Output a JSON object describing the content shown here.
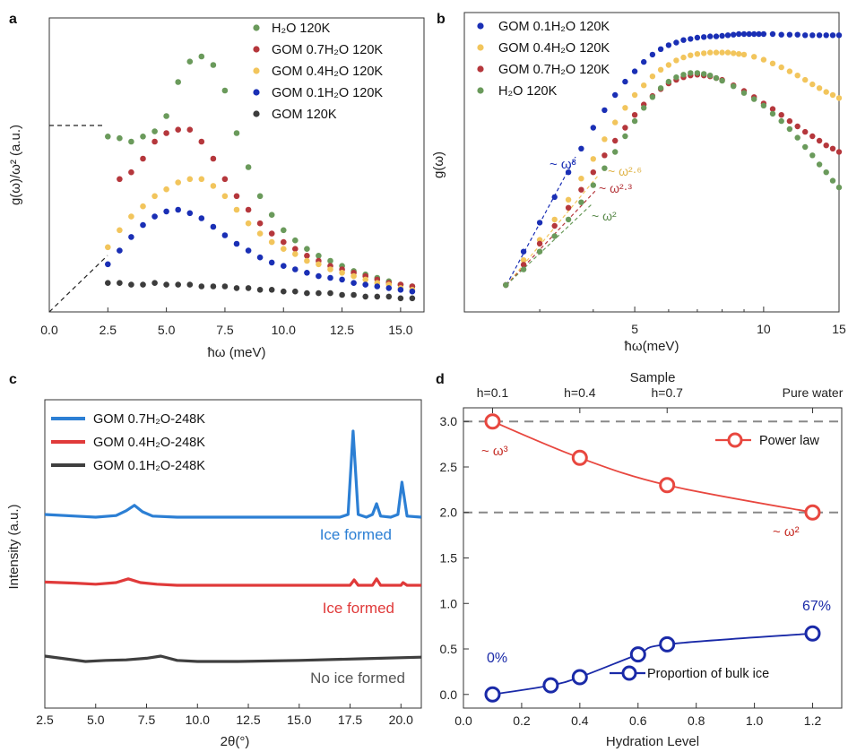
{
  "chart_data": [
    {
      "panel": "a",
      "type": "scatter",
      "xlabel": "ħω (meV)",
      "ylabel": "g(ω)/ω² (a.u.)",
      "xlim": [
        0,
        16
      ],
      "xticks": [
        "0.0",
        "2.5",
        "5.0",
        "7.5",
        "10.0",
        "12.5",
        "15.0"
      ],
      "legend_position": "top-right",
      "series": [
        {
          "name": "H₂O 120K",
          "color": "#6a9a5b",
          "x": [
            2.5,
            3.0,
            3.5,
            4.0,
            4.5,
            5.0,
            5.5,
            6.0,
            6.5,
            7.0,
            7.5,
            8.0,
            8.5,
            9.0,
            9.5,
            10.0,
            10.5,
            11.0,
            11.5,
            12.0,
            12.5,
            13.0,
            13.5,
            14.0,
            14.5,
            15.0,
            15.5
          ],
          "y": [
            1.03,
            1.02,
            1.0,
            1.03,
            1.06,
            1.15,
            1.35,
            1.47,
            1.5,
            1.45,
            1.3,
            1.05,
            0.85,
            0.68,
            0.57,
            0.48,
            0.42,
            0.37,
            0.33,
            0.3,
            0.27,
            0.24,
            0.22,
            0.2,
            0.18,
            0.16,
            0.15
          ]
        },
        {
          "name": "GOM 0.7H₂O 120K",
          "color": "#b5373c",
          "x": [
            3.0,
            3.5,
            4.0,
            4.5,
            5.0,
            5.5,
            6.0,
            6.5,
            7.0,
            7.5,
            8.0,
            8.5,
            9.0,
            9.5,
            10.0,
            10.5,
            11.0,
            11.5,
            12.0,
            12.5,
            13.0,
            13.5,
            14.0,
            14.5,
            15.0,
            15.5
          ],
          "y": [
            0.78,
            0.82,
            0.9,
            1.0,
            1.05,
            1.07,
            1.07,
            1.0,
            0.9,
            0.78,
            0.68,
            0.6,
            0.52,
            0.46,
            0.41,
            0.37,
            0.33,
            0.3,
            0.27,
            0.25,
            0.23,
            0.21,
            0.19,
            0.17,
            0.16,
            0.15
          ]
        },
        {
          "name": "GOM 0.4H₂O 120K",
          "color": "#f2c55c",
          "x": [
            2.5,
            3.0,
            3.5,
            4.0,
            4.5,
            5.0,
            5.5,
            6.0,
            6.5,
            7.0,
            7.5,
            8.0,
            8.5,
            9.0,
            9.5,
            10.0,
            10.5,
            11.0,
            11.5,
            12.0,
            12.5,
            13.0,
            13.5,
            14.0,
            14.5,
            15.0,
            15.5
          ],
          "y": [
            0.38,
            0.48,
            0.56,
            0.62,
            0.68,
            0.72,
            0.76,
            0.78,
            0.78,
            0.74,
            0.68,
            0.6,
            0.52,
            0.46,
            0.41,
            0.37,
            0.34,
            0.3,
            0.28,
            0.25,
            0.23,
            0.21,
            0.19,
            0.17,
            0.16,
            0.14,
            0.13
          ]
        },
        {
          "name": "GOM 0.1H₂O 120K",
          "color": "#1a2fb5",
          "x": [
            2.5,
            3.0,
            3.5,
            4.0,
            4.5,
            5.0,
            5.5,
            6.0,
            6.5,
            7.0,
            7.5,
            8.0,
            8.5,
            9.0,
            9.5,
            10.0,
            10.5,
            11.0,
            11.5,
            12.0,
            12.5,
            13.0,
            13.5,
            14.0,
            14.5,
            15.0,
            15.5
          ],
          "y": [
            0.28,
            0.36,
            0.44,
            0.51,
            0.56,
            0.59,
            0.6,
            0.58,
            0.55,
            0.5,
            0.45,
            0.4,
            0.36,
            0.32,
            0.29,
            0.27,
            0.25,
            0.23,
            0.21,
            0.2,
            0.19,
            0.17,
            0.16,
            0.15,
            0.14,
            0.13,
            0.12
          ]
        },
        {
          "name": "GOM 120K",
          "color": "#3c3c3c",
          "x": [
            2.5,
            3.0,
            3.5,
            4.0,
            4.5,
            5.0,
            5.5,
            6.0,
            6.5,
            7.0,
            7.5,
            8.0,
            8.5,
            9.0,
            9.5,
            10.0,
            10.5,
            11.0,
            11.5,
            12.0,
            12.5,
            13.0,
            13.5,
            14.0,
            14.5,
            15.0,
            15.5
          ],
          "y": [
            0.17,
            0.17,
            0.16,
            0.16,
            0.17,
            0.16,
            0.16,
            0.16,
            0.15,
            0.15,
            0.15,
            0.14,
            0.14,
            0.13,
            0.13,
            0.12,
            0.12,
            0.11,
            0.11,
            0.11,
            0.1,
            0.1,
            0.09,
            0.09,
            0.09,
            0.08,
            0.08
          ]
        }
      ]
    },
    {
      "panel": "b",
      "type": "scatter",
      "xlabel": "ħω(meV)",
      "ylabel": "g(ω)",
      "xscale": "log",
      "xlim": [
        2.0,
        15
      ],
      "xticks": [
        "5",
        "10",
        "15"
      ],
      "yscale": "log",
      "legend_position": "top-left",
      "annotations": [
        "~ ω³",
        "~ ω²·⁶",
        "~ ω²·³",
        "~ ω²"
      ],
      "series": [
        {
          "name": "GOM 0.1H₂O 120K",
          "color": "#1a2fb5",
          "x": [
            2.5,
            2.75,
            3.0,
            3.25,
            3.5,
            3.75,
            4.0,
            4.25,
            4.5,
            4.75,
            5.0,
            5.25,
            5.5,
            5.75,
            6.0,
            6.25,
            6.5,
            6.75,
            7.0,
            7.25,
            7.5,
            7.75,
            8.0,
            8.25,
            8.5,
            8.75,
            9.0,
            9.25,
            9.5,
            9.75,
            10.0,
            10.5,
            11.0,
            11.5,
            12.0,
            12.5,
            13.0,
            13.5,
            14.0,
            14.5,
            15.0
          ],
          "y": [
            1.0,
            1.35,
            1.75,
            2.2,
            2.75,
            3.4,
            4.1,
            4.8,
            5.5,
            6.2,
            6.8,
            7.4,
            7.9,
            8.3,
            8.6,
            8.8,
            9.0,
            9.1,
            9.2,
            9.25,
            9.3,
            9.3,
            9.35,
            9.4,
            9.45,
            9.5,
            9.5,
            9.5,
            9.5,
            9.5,
            9.5,
            9.5,
            9.45,
            9.45,
            9.45,
            9.4,
            9.4,
            9.4,
            9.4,
            9.4,
            9.4
          ]
        },
        {
          "name": "GOM 0.4H₂O 120K",
          "color": "#f2c55c",
          "x": [
            2.5,
            2.75,
            3.0,
            3.25,
            3.5,
            3.75,
            4.0,
            4.25,
            4.5,
            4.75,
            5.0,
            5.25,
            5.5,
            5.75,
            6.0,
            6.25,
            6.5,
            6.75,
            7.0,
            7.25,
            7.5,
            7.75,
            8.0,
            8.25,
            8.5,
            8.75,
            9.0,
            9.5,
            10.0,
            10.5,
            11.0,
            11.5,
            12.0,
            12.5,
            13.0,
            13.5,
            14.0,
            14.5,
            15.0
          ],
          "y": [
            1.0,
            1.25,
            1.5,
            1.8,
            2.15,
            2.6,
            3.1,
            3.7,
            4.3,
            4.9,
            5.5,
            6.0,
            6.5,
            6.9,
            7.2,
            7.5,
            7.7,
            7.85,
            7.95,
            8.0,
            8.05,
            8.05,
            8.05,
            8.05,
            8.0,
            7.95,
            7.9,
            7.75,
            7.55,
            7.3,
            7.05,
            6.8,
            6.55,
            6.3,
            6.05,
            5.85,
            5.65,
            5.5,
            5.35
          ]
        },
        {
          "name": "GOM 0.7H₂O 120K",
          "color": "#b5373c",
          "x": [
            2.5,
            2.75,
            3.0,
            3.25,
            3.5,
            3.75,
            4.0,
            4.25,
            4.5,
            4.75,
            5.0,
            5.25,
            5.5,
            5.75,
            6.0,
            6.25,
            6.5,
            6.75,
            7.0,
            7.25,
            7.5,
            7.75,
            8.0,
            8.5,
            9.0,
            9.5,
            10.0,
            10.5,
            11.0,
            11.5,
            12.0,
            12.5,
            13.0,
            13.5,
            14.0,
            14.5,
            15.0
          ],
          "y": [
            1.0,
            1.2,
            1.45,
            1.7,
            2.0,
            2.35,
            2.75,
            3.2,
            3.65,
            4.1,
            4.6,
            5.05,
            5.45,
            5.8,
            6.1,
            6.3,
            6.45,
            6.55,
            6.6,
            6.55,
            6.5,
            6.4,
            6.3,
            6.0,
            5.7,
            5.4,
            5.1,
            4.85,
            4.6,
            4.35,
            4.15,
            3.95,
            3.8,
            3.65,
            3.5,
            3.4,
            3.3
          ]
        },
        {
          "name": "H₂O 120K",
          "color": "#6a9a5b",
          "x": [
            2.5,
            2.75,
            3.0,
            3.25,
            3.5,
            3.75,
            4.0,
            4.25,
            4.5,
            4.75,
            5.0,
            5.25,
            5.5,
            5.75,
            6.0,
            6.25,
            6.5,
            6.75,
            7.0,
            7.25,
            7.5,
            7.75,
            8.0,
            8.5,
            9.0,
            9.5,
            10.0,
            10.5,
            11.0,
            11.5,
            12.0,
            12.5,
            13.0,
            13.5,
            14.0,
            14.5,
            15.0
          ],
          "y": [
            1.0,
            1.15,
            1.35,
            1.55,
            1.8,
            2.1,
            2.45,
            2.85,
            3.3,
            3.8,
            4.35,
            4.9,
            5.4,
            5.85,
            6.2,
            6.45,
            6.6,
            6.7,
            6.7,
            6.65,
            6.55,
            6.4,
            6.25,
            5.95,
            5.6,
            5.3,
            5.0,
            4.65,
            4.35,
            4.05,
            3.75,
            3.45,
            3.2,
            2.95,
            2.75,
            2.55,
            2.4
          ]
        }
      ]
    },
    {
      "panel": "c",
      "type": "line",
      "xlabel": "2θ(°)",
      "ylabel": "Intensity (a.u.)",
      "xlim": [
        2.5,
        21
      ],
      "xticks": [
        "2.5",
        "5.0",
        "7.5",
        "10.0",
        "12.5",
        "15.0",
        "17.5",
        "20.0"
      ],
      "legend_position": "top-left",
      "annotations": [
        "Ice formed",
        "Ice formed",
        "No ice formed"
      ],
      "series": [
        {
          "name": "GOM 0.7H₂O-248K",
          "color": "#2c7fd4",
          "offset": 2.0,
          "x": [
            2.5,
            4.0,
            5.0,
            6.0,
            6.5,
            6.9,
            7.3,
            7.8,
            9.0,
            12.0,
            15.0,
            17.0,
            17.4,
            17.65,
            17.9,
            18.3,
            18.6,
            18.8,
            19.0,
            19.5,
            19.85,
            20.05,
            20.3,
            21.0
          ],
          "y": [
            0.05,
            0.02,
            0.0,
            0.03,
            0.12,
            0.22,
            0.1,
            0.02,
            0.0,
            0.0,
            0.0,
            0.0,
            0.05,
            1.6,
            0.05,
            0.0,
            0.05,
            0.25,
            0.02,
            0.0,
            0.05,
            0.65,
            0.02,
            0.0
          ]
        },
        {
          "name": "GOM 0.4H₂O-248K",
          "color": "#e03a3a",
          "offset": 1.0,
          "x": [
            2.5,
            4.0,
            5.0,
            6.0,
            6.6,
            7.2,
            8.0,
            9.0,
            12.0,
            15.0,
            17.5,
            17.7,
            17.9,
            18.6,
            18.8,
            19.0,
            20.0,
            20.1,
            20.3,
            21.0
          ],
          "y": [
            0.06,
            0.04,
            0.02,
            0.05,
            0.12,
            0.05,
            0.02,
            0.0,
            0.0,
            0.0,
            0.0,
            0.1,
            0.0,
            0.0,
            0.12,
            0.0,
            0.0,
            0.05,
            0.0,
            0.0
          ]
        },
        {
          "name": "GOM 0.1H₂O-248K",
          "color": "#3f3f3f",
          "offset": 0.0,
          "x": [
            2.5,
            3.5,
            4.5,
            5.5,
            6.5,
            7.5,
            8.2,
            9.0,
            10.0,
            12.0,
            15.0,
            18.0,
            21.0
          ],
          "y": [
            0.1,
            0.05,
            0.0,
            0.02,
            0.03,
            0.06,
            0.1,
            0.02,
            0.0,
            0.0,
            0.02,
            0.05,
            0.08
          ]
        }
      ]
    },
    {
      "panel": "d",
      "type": "line",
      "xlabel": "Hydration Level",
      "top_xlabel": "Sample",
      "top_xticks": [
        "h=0.1",
        "h=0.4",
        "h=0.7",
        "Pure water"
      ],
      "xlim": [
        0.0,
        1.3
      ],
      "xticks": [
        "0.0",
        "0.2",
        "0.4",
        "0.6",
        "0.8",
        "1.0",
        "1.2"
      ],
      "ylim": [
        -0.15,
        3.15
      ],
      "yticks": [
        "0.0",
        "0.5",
        "1.0",
        "1.5",
        "2.0",
        "2.5",
        "3.0"
      ],
      "legend_position": "right",
      "annotations": [
        "~ ω³",
        "~ ω²",
        "0%",
        "67%"
      ],
      "series": [
        {
          "name": "Power law",
          "color": "#e8473f",
          "x": [
            0.1,
            0.4,
            0.7,
            1.2
          ],
          "y": [
            3.0,
            2.6,
            2.3,
            2.0
          ]
        },
        {
          "name": "Proportion of bulk ice",
          "color": "#1a2aa8",
          "x": [
            0.1,
            0.3,
            0.4,
            0.6,
            0.7,
            1.2
          ],
          "y": [
            0.0,
            0.1,
            0.19,
            0.44,
            0.55,
            0.67
          ]
        }
      ]
    }
  ],
  "panel_labels": [
    "a",
    "b",
    "c",
    "d"
  ]
}
